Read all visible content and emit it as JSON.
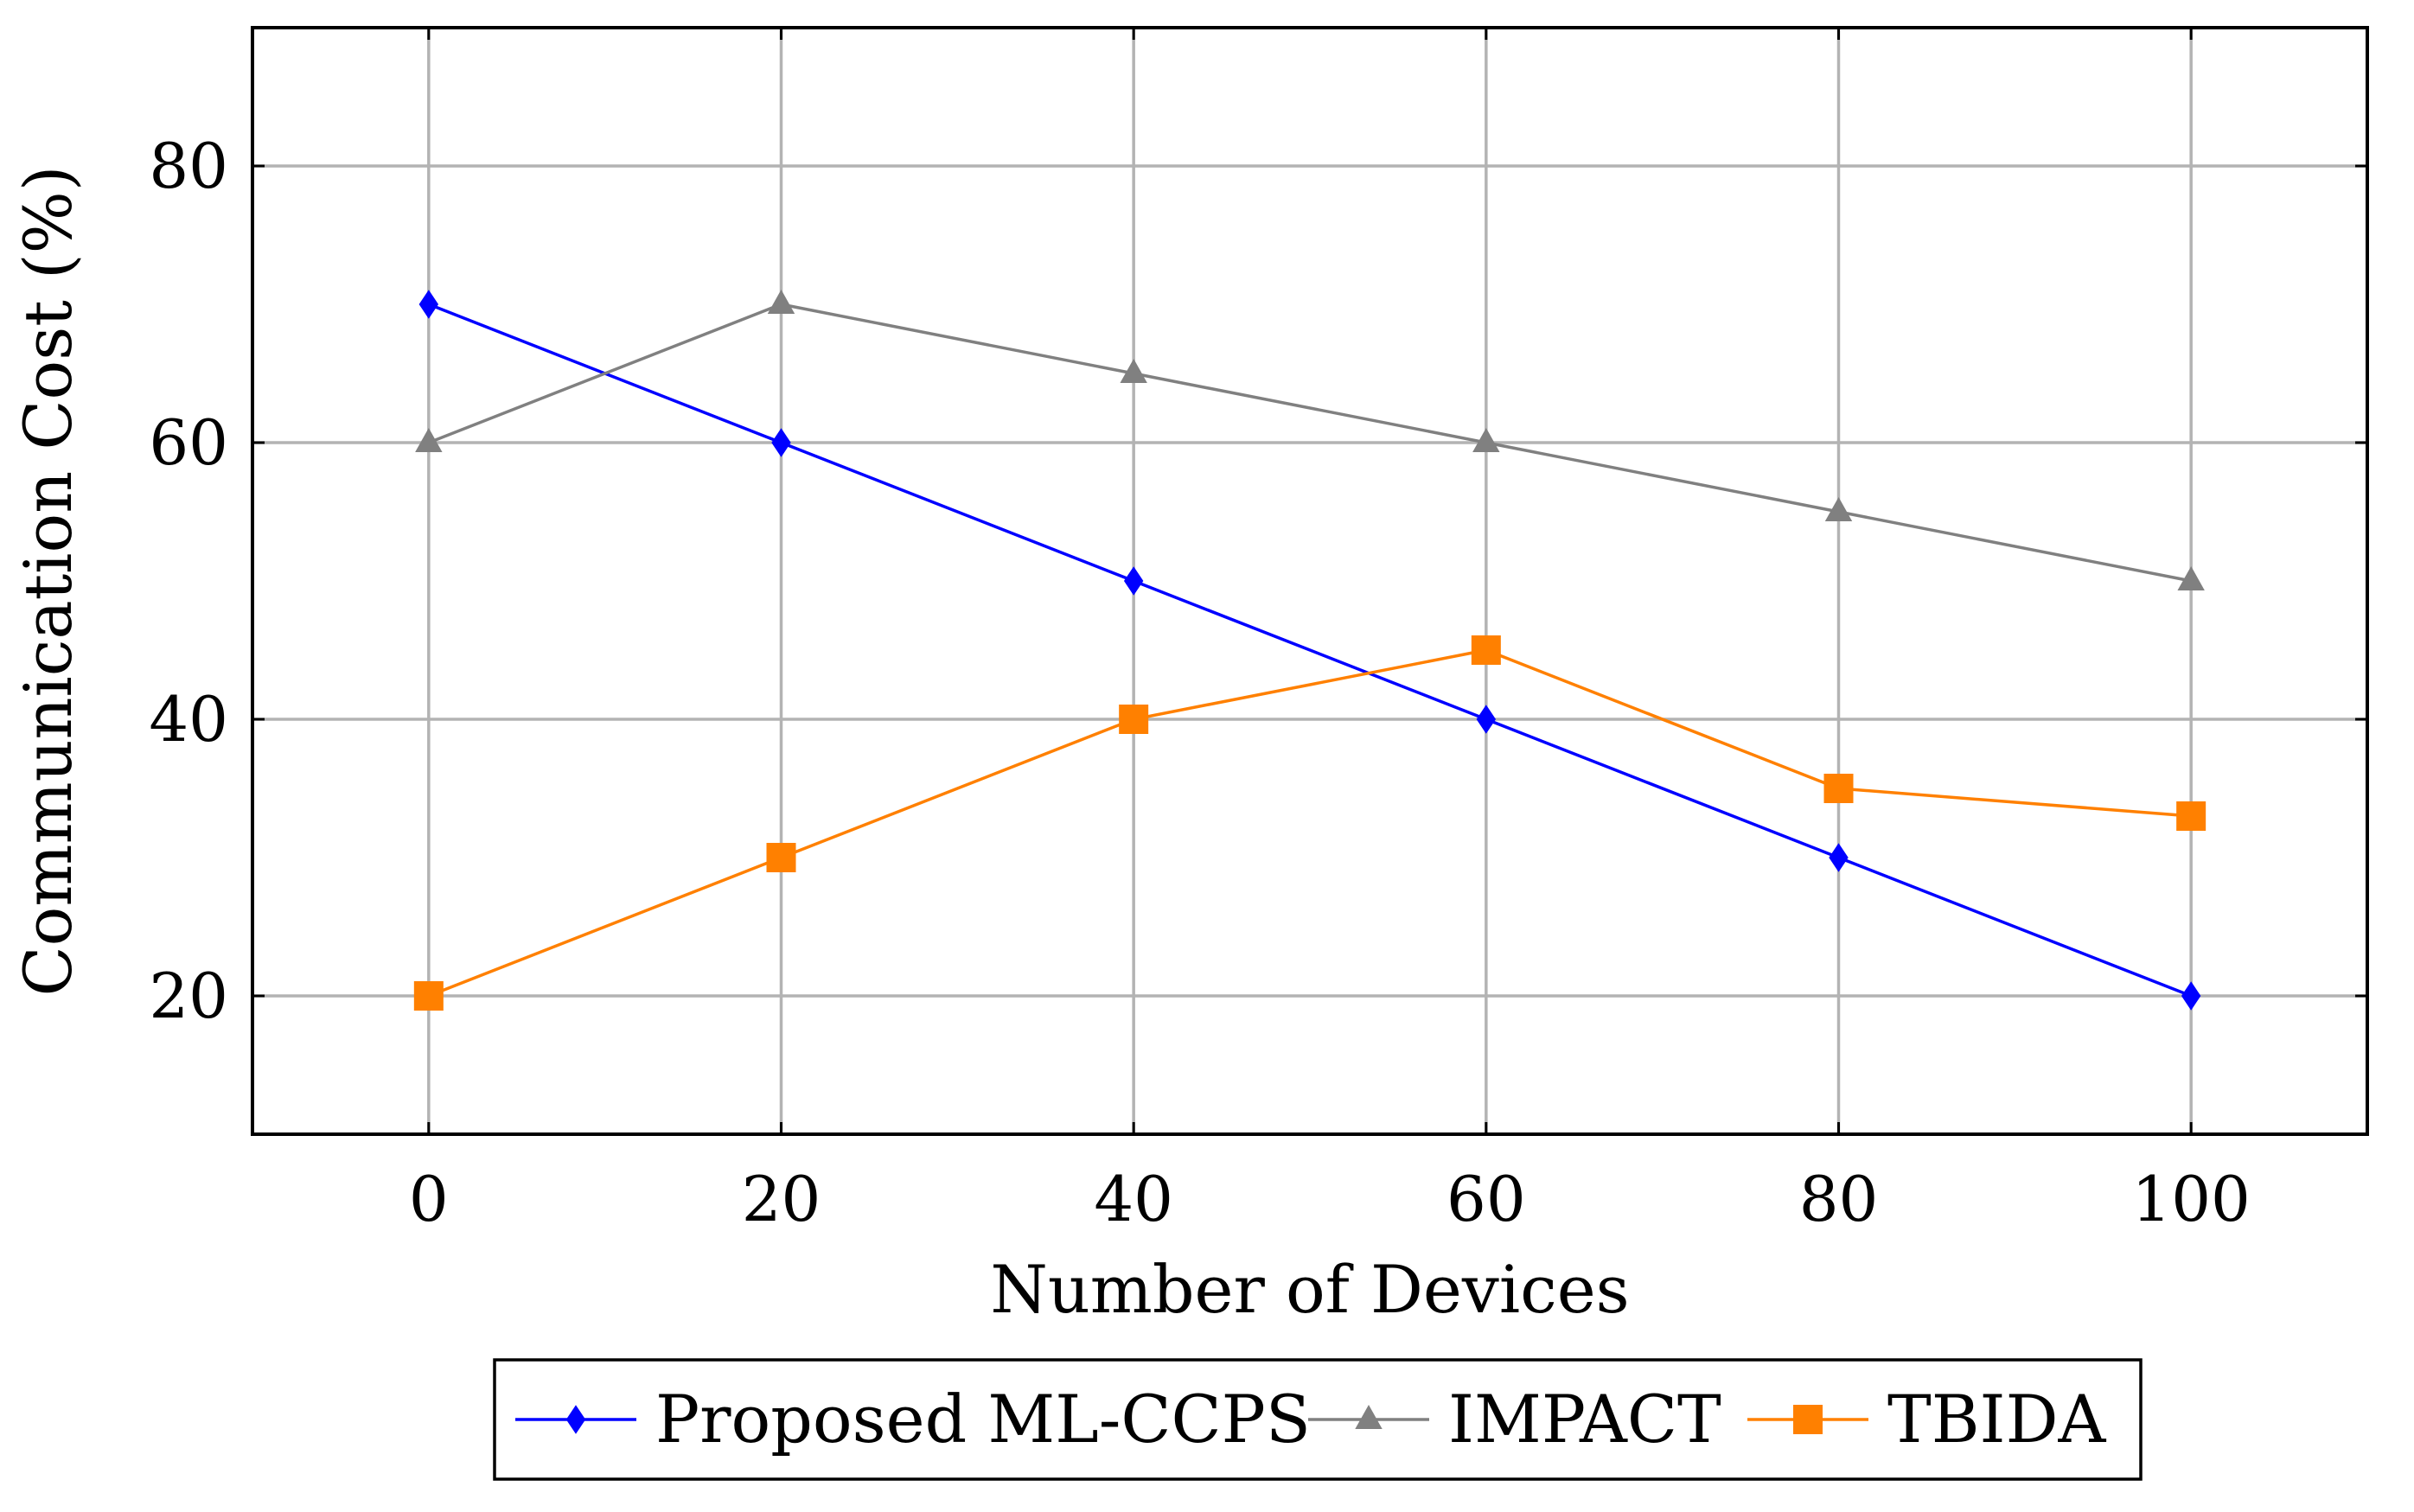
{
  "chart_data": {
    "type": "line",
    "title": "",
    "xlabel": "Number of Devices",
    "ylabel": "Communication Cost (%)",
    "x": [
      0,
      20,
      40,
      60,
      80,
      100
    ],
    "xlim": [
      -10,
      110
    ],
    "ylim": [
      10,
      90
    ],
    "xticks": [
      "0",
      "20",
      "40",
      "60",
      "80",
      "100"
    ],
    "yticks": [
      "20",
      "40",
      "60",
      "80"
    ],
    "grid": true,
    "legend_position": "bottom-center",
    "series": [
      {
        "name": "Proposed ML-CCPS",
        "color": "#0000ff",
        "marker": "diamond",
        "values": [
          70,
          60,
          50,
          40,
          30,
          20
        ]
      },
      {
        "name": "IMPACT",
        "color": "#808080",
        "marker": "triangle",
        "values": [
          60,
          70,
          65,
          60,
          55,
          50
        ]
      },
      {
        "name": "TBIDA",
        "color": "#ff8000",
        "marker": "square",
        "values": [
          20,
          30,
          40,
          45,
          35,
          33
        ]
      }
    ]
  }
}
